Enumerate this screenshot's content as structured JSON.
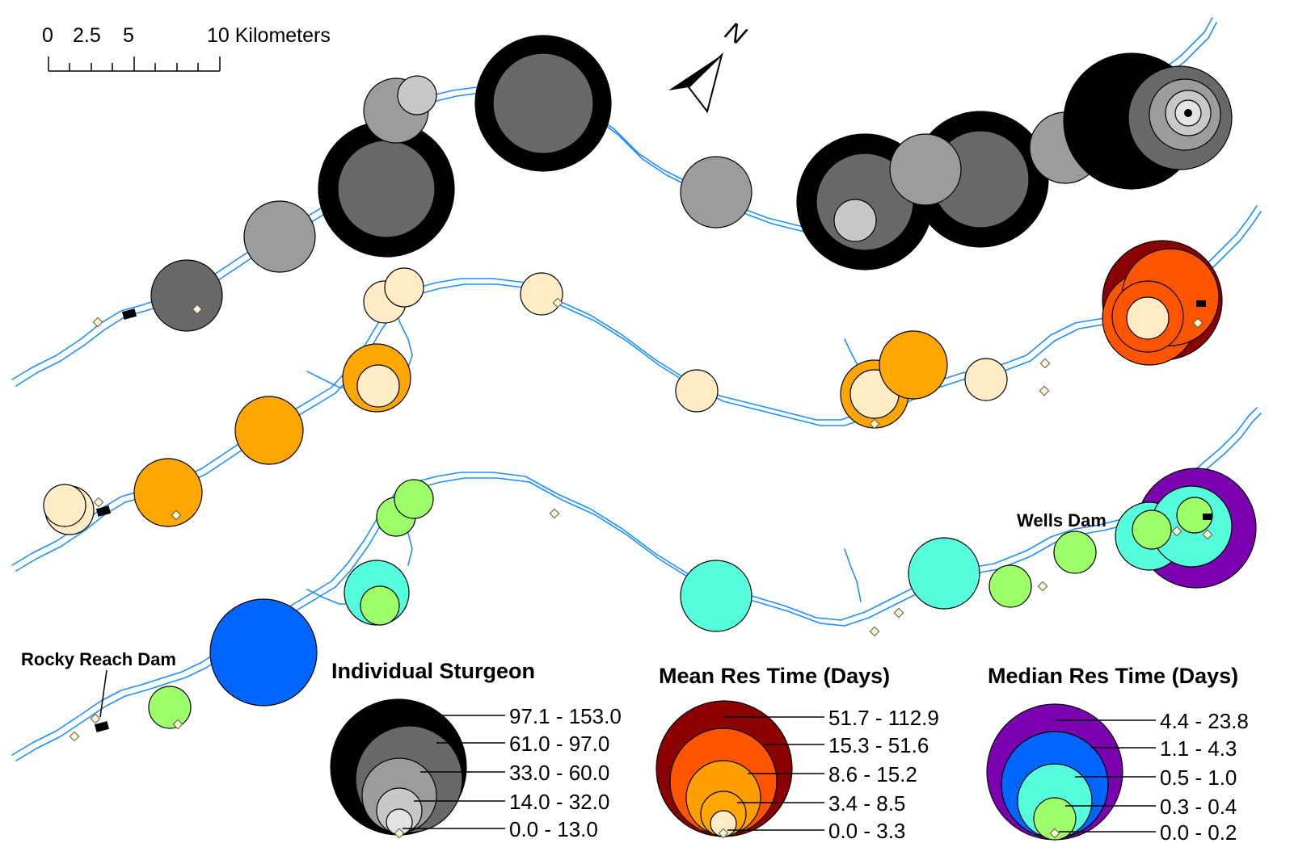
{
  "scalebar": {
    "ticks": [
      "0",
      "2.5",
      "5",
      "10 Kilometers"
    ]
  },
  "north_arrow": {
    "label": "N"
  },
  "dams": {
    "rocky_reach": "Rocky Reach Dam",
    "wells": "Wells Dam"
  },
  "legends": [
    {
      "title": "Individual Sturgeon",
      "classes": [
        "97.1 - 153.0",
        "61.0 - 97.0",
        "33.0 - 60.0",
        "14.0 - 32.0",
        "0.0 - 13.0"
      ],
      "colors": [
        "#000000",
        "#686868",
        "#9c9c9c",
        "#c8c8c8",
        "#e4e4e4"
      ]
    },
    {
      "title": "Mean Res Time (Days)",
      "classes": [
        "51.7 - 112.9",
        "15.3 - 51.6",
        "8.6 - 15.2",
        "3.4 - 8.5",
        "0.0 - 3.3"
      ],
      "colors": [
        "#8b0000",
        "#ff5500",
        "#ff9e00",
        "#ffa700",
        "#ffebc5"
      ]
    },
    {
      "title": "Median Res Time (Days)",
      "classes": [
        "4.4 - 23.8",
        "1.1 - 4.3",
        "0.5 - 1.0",
        "0.3 - 0.4",
        "0.0 - 0.2"
      ],
      "colors": [
        "#7a00b0",
        "#0064ff",
        "#33aaff",
        "#55ffdd",
        "#9dff6a"
      ]
    }
  ]
}
